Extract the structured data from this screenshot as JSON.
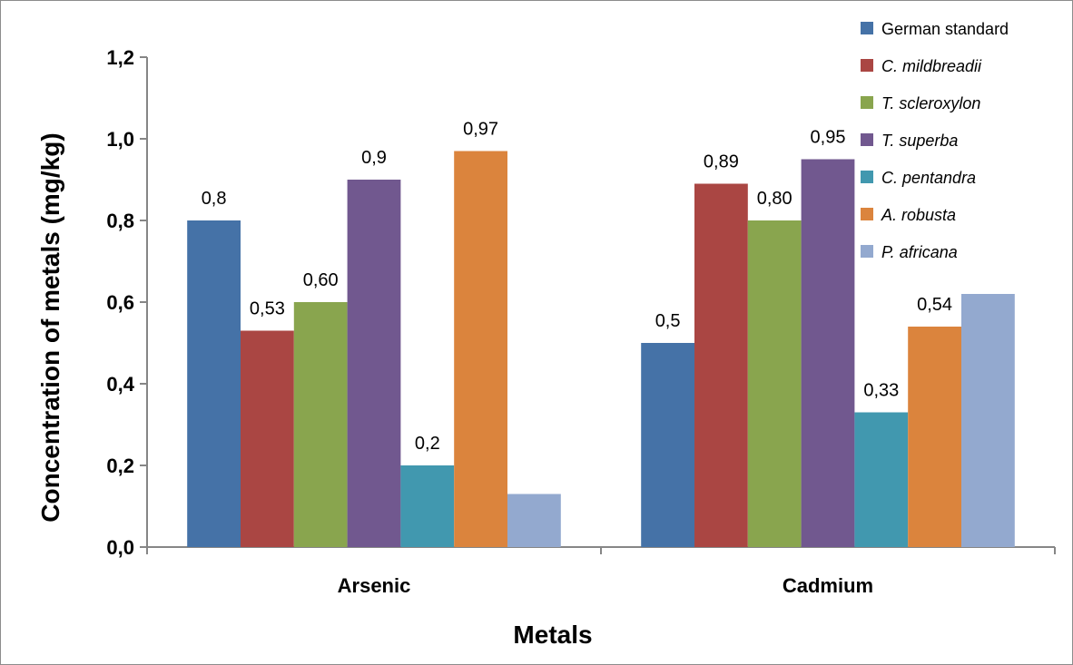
{
  "chart_data": {
    "type": "bar",
    "title": "",
    "xlabel": "Metals",
    "ylabel": "Concentration of metals (mg/kg)",
    "categories": [
      "Arsenic",
      "Cadmium"
    ],
    "ylim": [
      0,
      1.2
    ],
    "yticks": [
      "0,0",
      "0,2",
      "0,4",
      "0,6",
      "0,8",
      "1,0",
      "1,2"
    ],
    "grid": false,
    "legend_position": "top-right",
    "series": [
      {
        "name": "German standard",
        "italic": false,
        "color": "#4572a7",
        "values": [
          0.8,
          0.5
        ],
        "labels": [
          "0,8",
          "0,5"
        ]
      },
      {
        "name": "C. mildbreadii",
        "italic": true,
        "color": "#aa4643",
        "values": [
          0.53,
          0.89
        ],
        "labels": [
          "0,53",
          "0,89"
        ]
      },
      {
        "name": "T.  scleroxylon",
        "italic": true,
        "color": "#89a54e",
        "values": [
          0.6,
          0.8
        ],
        "labels": [
          "0,60",
          "0,80"
        ]
      },
      {
        "name": "T. superba",
        "italic": true,
        "color": "#71588f",
        "values": [
          0.9,
          0.95
        ],
        "labels": [
          "0,9",
          "0,95"
        ]
      },
      {
        "name": "C. pentandra",
        "italic": true,
        "color": "#4198af",
        "values": [
          0.2,
          0.33
        ],
        "labels": [
          "0,2",
          "0,33"
        ]
      },
      {
        "name": "A. robusta",
        "italic": true,
        "color": "#db843d",
        "values": [
          0.97,
          0.54
        ],
        "labels": [
          "0,97",
          "0,54"
        ]
      },
      {
        "name": "P.  africana",
        "italic": true,
        "color": "#93a9cf",
        "values": [
          0.13,
          0.62
        ],
        "labels": [
          "",
          ""
        ]
      }
    ]
  }
}
